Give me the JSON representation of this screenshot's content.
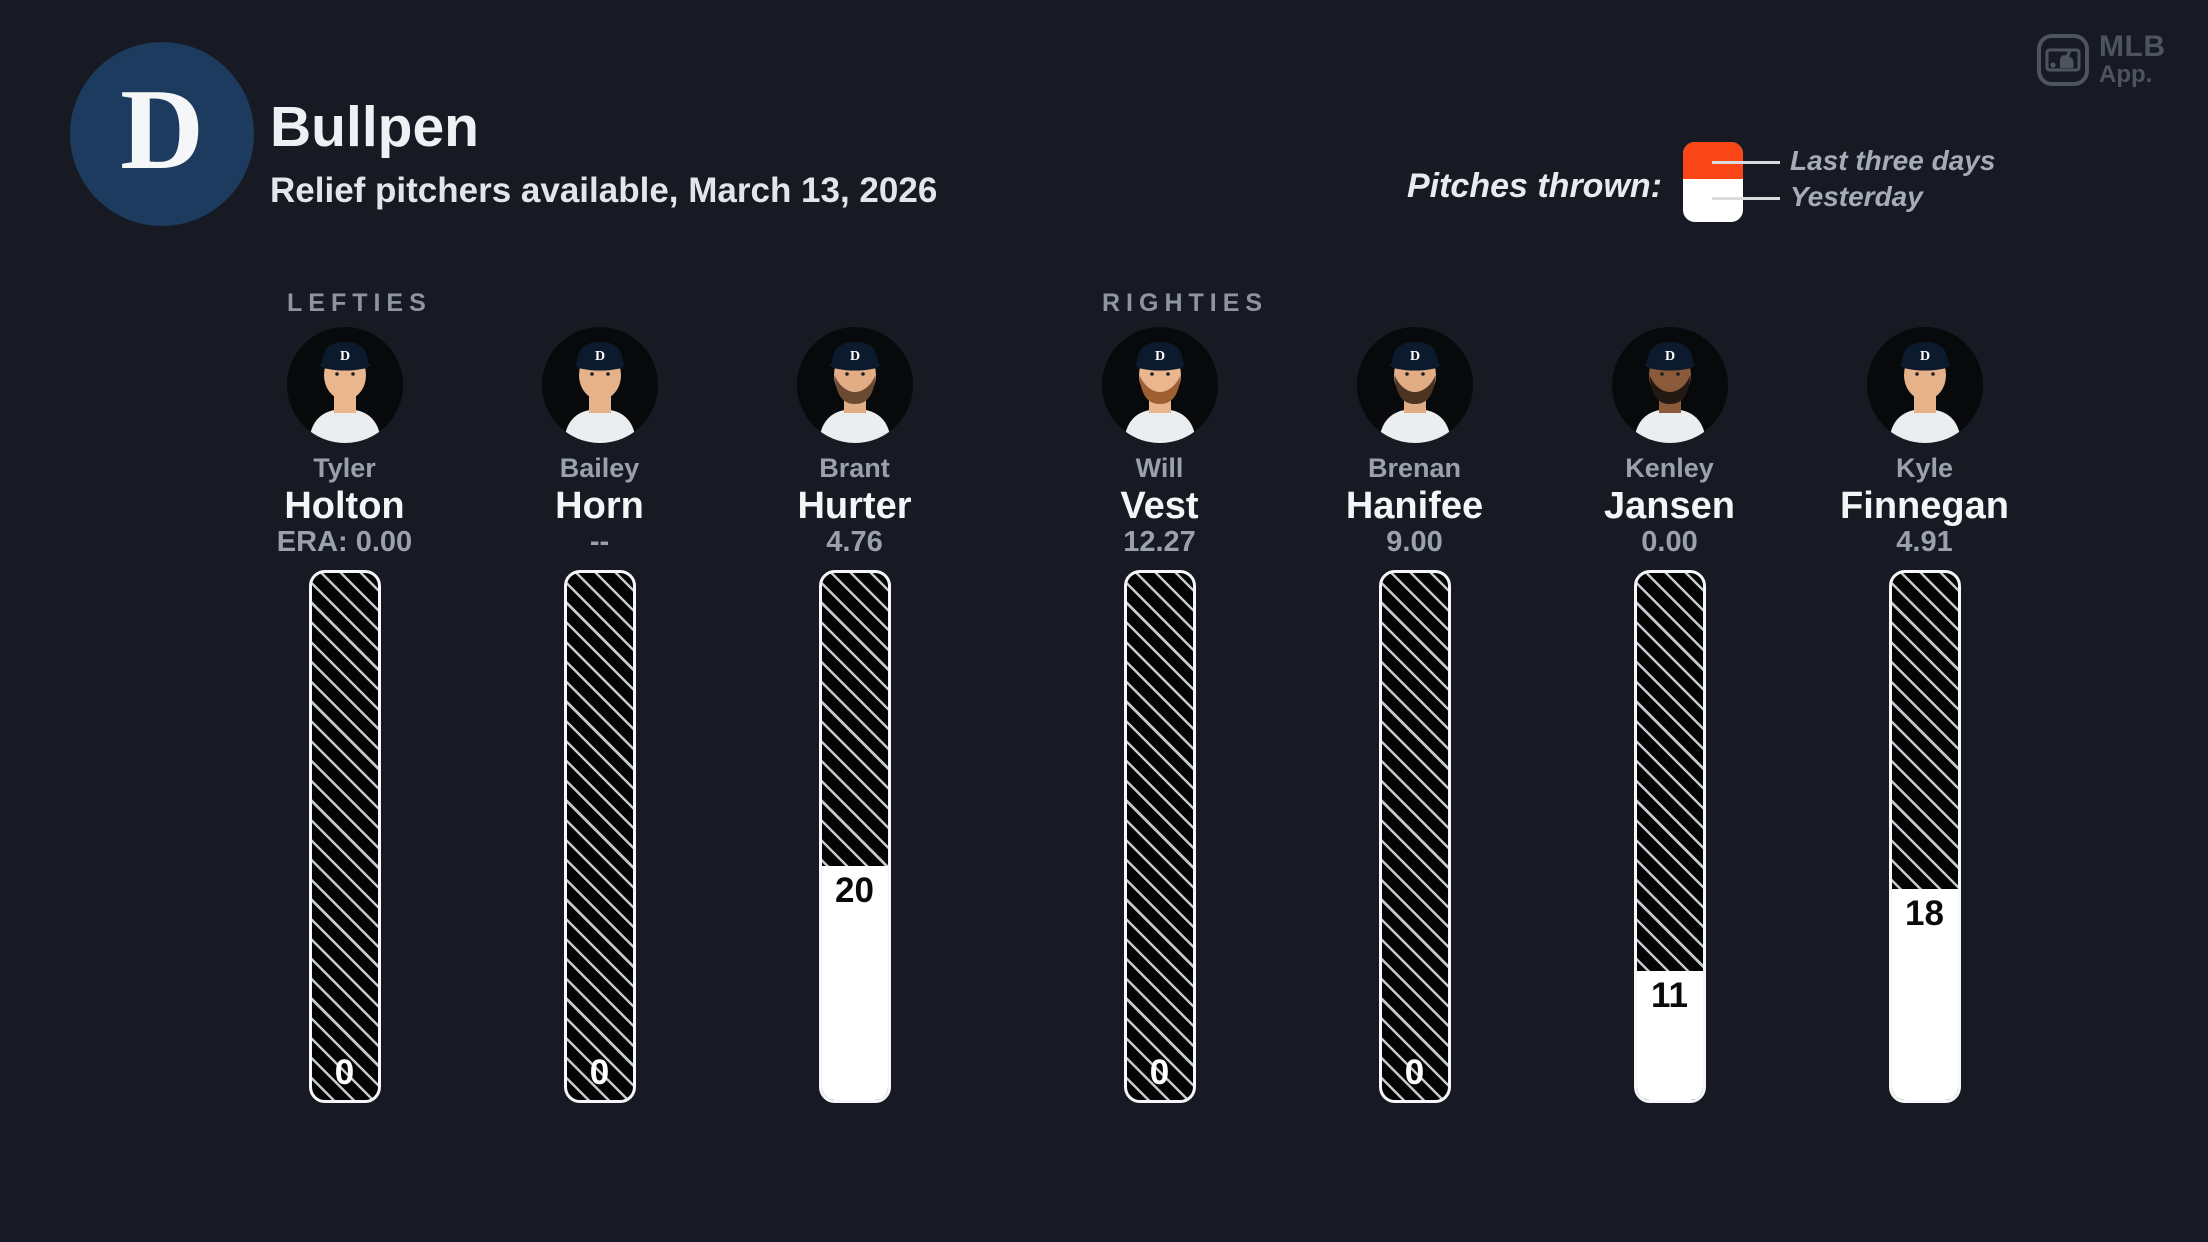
{
  "header": {
    "team_logo_letter": "D",
    "title": "Bullpen",
    "subtitle": "Relief pitchers available, March 13, 2026"
  },
  "app_badge": {
    "line1": "MLB",
    "line2": "App."
  },
  "chart_data": {
    "type": "bar",
    "title": "Bullpen",
    "subtitle": "Relief pitchers available, March 13, 2026",
    "legend": {
      "label": "Pitches thrown:",
      "entries": [
        {
          "name": "Last three days",
          "color": "#fa4616"
        },
        {
          "name": "Yesterday",
          "color": "#ffffff"
        }
      ]
    },
    "bar_scale_max_pitches": 45,
    "groups": [
      {
        "label": "LEFTIES",
        "players": [
          {
            "first": "Tyler",
            "last": "Holton",
            "era_label": "ERA: 0.00",
            "pitches_yesterday": 0,
            "avatar": {
              "skin": "#e9b68e",
              "beard": null
            }
          },
          {
            "first": "Bailey",
            "last": "Horn",
            "era_label": "--",
            "pitches_yesterday": 0,
            "avatar": {
              "skin": "#e6b28a",
              "beard": null
            }
          },
          {
            "first": "Brant",
            "last": "Hurter",
            "era_label": "4.76",
            "pitches_yesterday": 20,
            "avatar": {
              "skin": "#e2ad85",
              "beard": "#6b4a33"
            }
          }
        ]
      },
      {
        "label": "RIGHTIES",
        "players": [
          {
            "first": "Will",
            "last": "Vest",
            "era_label": "12.27",
            "pitches_yesterday": 0,
            "avatar": {
              "skin": "#e9b68e",
              "beard": "#a05f32"
            }
          },
          {
            "first": "Brenan",
            "last": "Hanifee",
            "era_label": "9.00",
            "pitches_yesterday": 0,
            "avatar": {
              "skin": "#e2ad85",
              "beard": "#4c3423"
            }
          },
          {
            "first": "Kenley",
            "last": "Jansen",
            "era_label": "0.00",
            "pitches_yesterday": 11,
            "avatar": {
              "skin": "#8a5a3b",
              "beard": "#241812"
            }
          },
          {
            "first": "Kyle",
            "last": "Finnegan",
            "era_label": "4.91",
            "pitches_yesterday": 18,
            "avatar": {
              "skin": "#e6b28a",
              "beard": null
            }
          }
        ]
      }
    ]
  },
  "colors": {
    "background": "#171a22",
    "accent_orange": "#fa4616",
    "team_navy": "#1d3a5f"
  }
}
